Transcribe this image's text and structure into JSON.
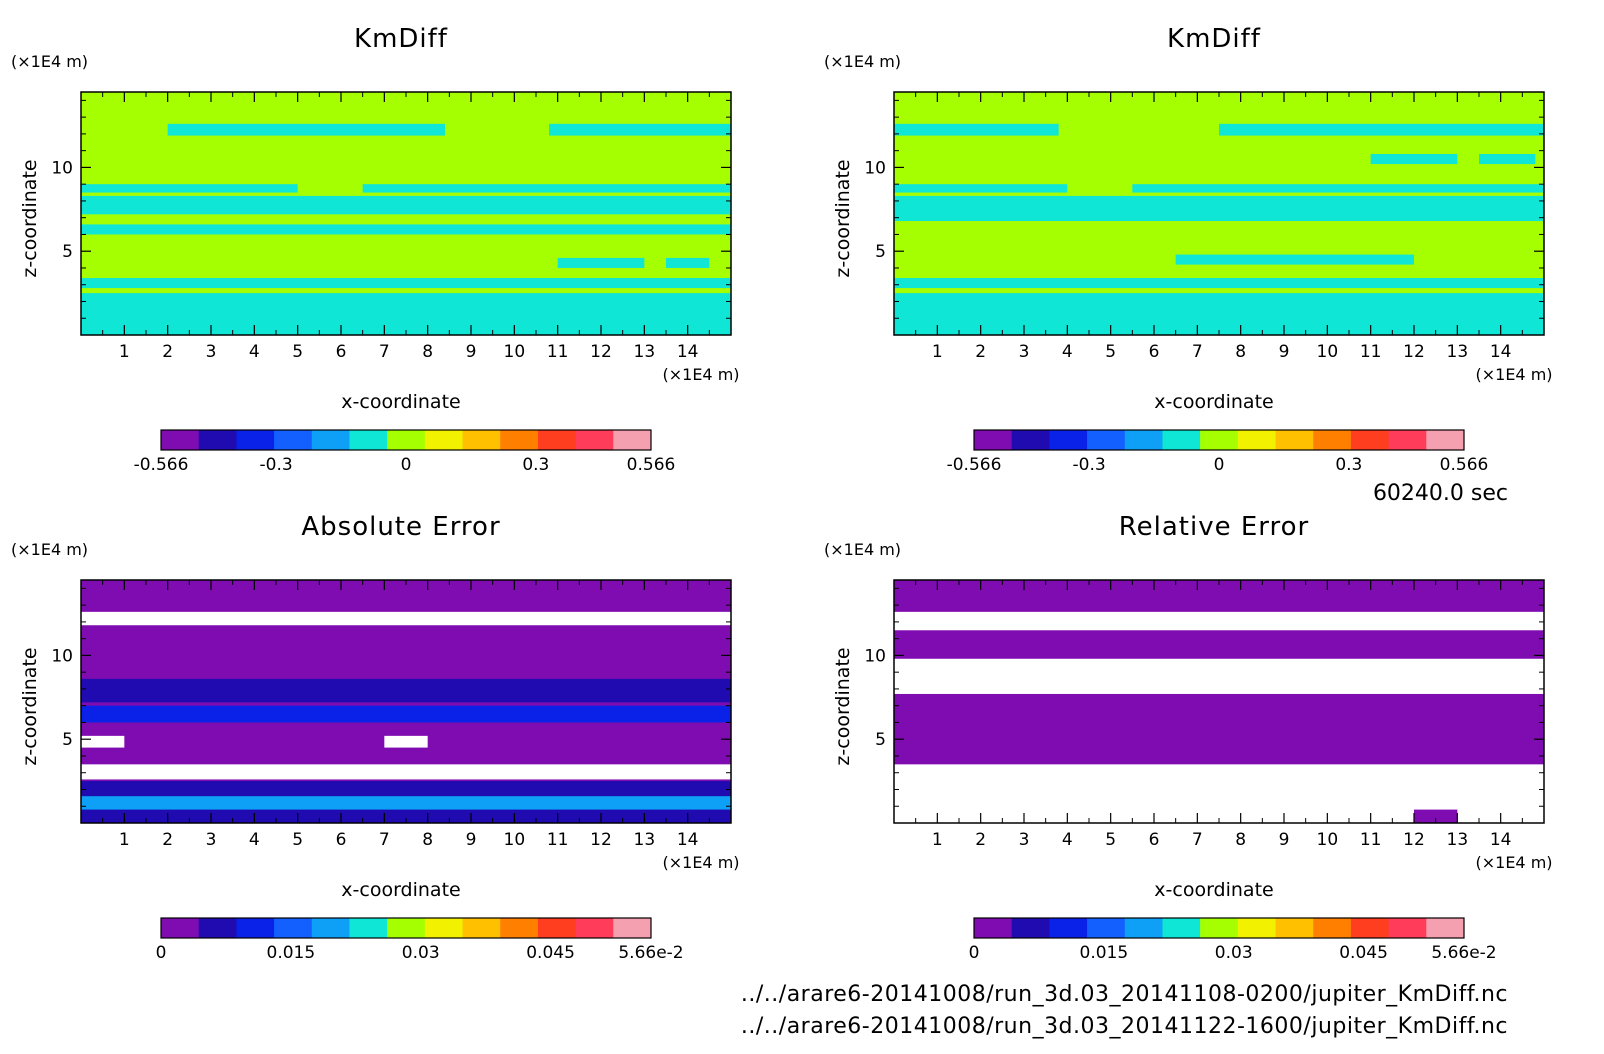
{
  "time_label": "60240.0 sec",
  "files": [
    "../../arare6-20141008/run_3d.03_20141108-0200/jupiter_KmDiff.nc",
    "../../arare6-20141008/run_3d.03_20141122-1600/jupiter_KmDiff.nc"
  ],
  "palette": [
    "#7f0cb0",
    "#1f0bb0",
    "#0a22e8",
    "#1460ff",
    "#0ea0f6",
    "#10e6d6",
    "#a6ff00",
    "#f2f200",
    "#ffc000",
    "#ff7f00",
    "#ff3d1f",
    "#ff3d5a",
    "#f4a0b0"
  ],
  "chart_data": [
    {
      "type": "heatmap",
      "title": "KmDiff",
      "xlabel": "x-coordinate",
      "ylabel": "z-coordinate",
      "x_unit": "(×1E4 m)",
      "y_unit": "(×1E4 m)",
      "xlim": [
        0,
        15
      ],
      "ylim": [
        0,
        14.5
      ],
      "x_ticks": [
        "1",
        "2",
        "3",
        "4",
        "5",
        "6",
        "7",
        "8",
        "9",
        "10",
        "11",
        "12",
        "13",
        "14"
      ],
      "y_ticks": [
        "5",
        "10"
      ],
      "colorbar": {
        "range": [
          -0.566,
          0.566
        ],
        "tick_labels": [
          "-0.566",
          "-0.3",
          "0",
          "0.3",
          "0.566"
        ]
      },
      "background": "#a6ff00",
      "bands": [
        {
          "z": [
            11.9,
            12.6
          ],
          "segments": [
            [
              2,
              8.4
            ],
            [
              10.8,
              15
            ]
          ],
          "color": "#10e6d6"
        },
        {
          "z": [
            8.5,
            9.0
          ],
          "segments": [
            [
              0,
              5
            ],
            [
              6.5,
              15
            ]
          ],
          "color": "#10e6d6"
        },
        {
          "z": [
            7.2,
            8.3
          ],
          "segments": [
            [
              0,
              15
            ]
          ],
          "color": "#10e6d6"
        },
        {
          "z": [
            6.0,
            6.6
          ],
          "segments": [
            [
              0,
              15
            ]
          ],
          "color": "#10e6d6"
        },
        {
          "z": [
            4.0,
            4.6
          ],
          "segments": [
            [
              11,
              13
            ],
            [
              13.5,
              14.5
            ]
          ],
          "color": "#10e6d6"
        },
        {
          "z": [
            2.8,
            3.4
          ],
          "segments": [
            [
              0,
              15
            ]
          ],
          "color": "#10e6d6"
        },
        {
          "z": [
            0,
            2.5
          ],
          "segments": [
            [
              0,
              15
            ]
          ],
          "color": "#10e6d6"
        }
      ]
    },
    {
      "type": "heatmap",
      "title": "KmDiff",
      "xlabel": "x-coordinate",
      "ylabel": "z-coordinate",
      "x_unit": "(×1E4 m)",
      "y_unit": "(×1E4 m)",
      "xlim": [
        0,
        15
      ],
      "ylim": [
        0,
        14.5
      ],
      "x_ticks": [
        "1",
        "2",
        "3",
        "4",
        "5",
        "6",
        "7",
        "8",
        "9",
        "10",
        "11",
        "12",
        "13",
        "14"
      ],
      "y_ticks": [
        "5",
        "10"
      ],
      "colorbar": {
        "range": [
          -0.566,
          0.566
        ],
        "tick_labels": [
          "-0.566",
          "-0.3",
          "0",
          "0.3",
          "0.566"
        ]
      },
      "background": "#a6ff00",
      "bands": [
        {
          "z": [
            11.9,
            12.6
          ],
          "segments": [
            [
              0,
              3.8
            ],
            [
              7.5,
              15
            ]
          ],
          "color": "#10e6d6"
        },
        {
          "z": [
            10.2,
            10.8
          ],
          "segments": [
            [
              11,
              13
            ],
            [
              13.5,
              14.8
            ]
          ],
          "color": "#10e6d6"
        },
        {
          "z": [
            8.5,
            9.0
          ],
          "segments": [
            [
              0,
              4
            ],
            [
              5.5,
              15
            ]
          ],
          "color": "#10e6d6"
        },
        {
          "z": [
            6.8,
            8.3
          ],
          "segments": [
            [
              0,
              15
            ]
          ],
          "color": "#10e6d6"
        },
        {
          "z": [
            4.2,
            4.8
          ],
          "segments": [
            [
              6.5,
              12
            ]
          ],
          "color": "#10e6d6"
        },
        {
          "z": [
            2.8,
            3.4
          ],
          "segments": [
            [
              0,
              15
            ]
          ],
          "color": "#10e6d6"
        },
        {
          "z": [
            0,
            2.5
          ],
          "segments": [
            [
              0,
              15
            ]
          ],
          "color": "#10e6d6"
        }
      ]
    },
    {
      "type": "heatmap",
      "title": "Absolute Error",
      "xlabel": "x-coordinate",
      "ylabel": "z-coordinate",
      "x_unit": "(×1E4 m)",
      "y_unit": "(×1E4 m)",
      "xlim": [
        0,
        15
      ],
      "ylim": [
        0,
        14.5
      ],
      "x_ticks": [
        "1",
        "2",
        "3",
        "4",
        "5",
        "6",
        "7",
        "8",
        "9",
        "10",
        "11",
        "12",
        "13",
        "14"
      ],
      "y_ticks": [
        "5",
        "10"
      ],
      "colorbar": {
        "range": [
          0,
          0.0566
        ],
        "tick_labels": [
          "0",
          "0.015",
          "0.03",
          "0.045",
          "5.66e-2"
        ]
      },
      "background": "#7f0cb0",
      "bands": [
        {
          "z": [
            11.8,
            12.6
          ],
          "segments": [
            [
              0,
              15
            ]
          ],
          "color": "#ffffff"
        },
        {
          "z": [
            7.2,
            8.6
          ],
          "segments": [
            [
              0,
              15
            ]
          ],
          "color": "#1f0bb0"
        },
        {
          "z": [
            6.0,
            7.0
          ],
          "segments": [
            [
              0,
              15
            ]
          ],
          "color": "#0a22e8"
        },
        {
          "z": [
            4.5,
            5.2
          ],
          "segments": [
            [
              0,
              1
            ],
            [
              7,
              8
            ]
          ],
          "color": "#ffffff"
        },
        {
          "z": [
            2.6,
            3.5
          ],
          "segments": [
            [
              0,
              15
            ]
          ],
          "color": "#ffffff"
        },
        {
          "z": [
            0,
            2.5
          ],
          "segments": [
            [
              0,
              15
            ]
          ],
          "color": "#1f0bb0"
        },
        {
          "z": [
            0.8,
            1.6
          ],
          "segments": [
            [
              0,
              15
            ]
          ],
          "color": "#0ea0f6"
        }
      ]
    },
    {
      "type": "heatmap",
      "title": "Relative Error",
      "xlabel": "x-coordinate",
      "ylabel": "z-coordinate",
      "x_unit": "(×1E4 m)",
      "y_unit": "(×1E4 m)",
      "xlim": [
        0,
        15
      ],
      "ylim": [
        0,
        14.5
      ],
      "x_ticks": [
        "1",
        "2",
        "3",
        "4",
        "5",
        "6",
        "7",
        "8",
        "9",
        "10",
        "11",
        "12",
        "13",
        "14"
      ],
      "y_ticks": [
        "5",
        "10"
      ],
      "colorbar": {
        "range": [
          0,
          0.0566
        ],
        "tick_labels": [
          "0",
          "0.015",
          "0.03",
          "0.045",
          "5.66e-2"
        ]
      },
      "background": "#7f0cb0",
      "bands": [
        {
          "z": [
            11.5,
            12.6
          ],
          "segments": [
            [
              0,
              15
            ]
          ],
          "color": "#ffffff"
        },
        {
          "z": [
            7.7,
            9.8
          ],
          "segments": [
            [
              0,
              15
            ]
          ],
          "color": "#ffffff"
        },
        {
          "z": [
            0,
            3.5
          ],
          "segments": [
            [
              0,
              15
            ]
          ],
          "color": "#ffffff"
        },
        {
          "z": [
            0,
            0.8
          ],
          "segments": [
            [
              12,
              13
            ]
          ],
          "color": "#7f0cb0"
        }
      ]
    }
  ]
}
